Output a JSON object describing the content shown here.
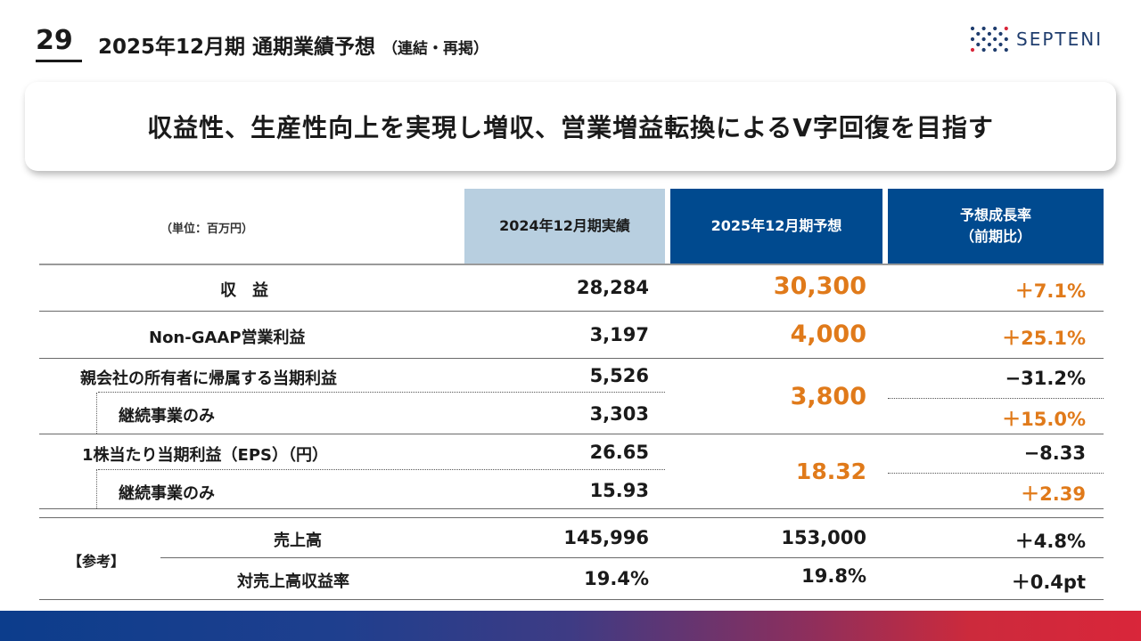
{
  "header": {
    "page_number": "29",
    "title": "2025年12月期 通期業績予想",
    "title_sub": "（連結・再掲）",
    "logo_text": "SEPTENI"
  },
  "headline": "収益性、生産性向上を実現し増収、営業増益転換によるV字回復を目指す",
  "table": {
    "unit": "（単位：百万円）",
    "col_actual": "2024年12月期実績",
    "col_forecast": "2025年12月期予想",
    "col_growth_line1": "予想成長率",
    "col_growth_line2": "（前期比）",
    "rows": {
      "revenue": {
        "label": "収　益",
        "actual": "28,284",
        "forecast": "30,300",
        "growth": "＋7.1%"
      },
      "op_profit": {
        "label": "Non-GAAP営業利益",
        "actual": "3,197",
        "forecast": "4,000",
        "growth": "＋25.1%"
      },
      "net_income": {
        "label": "親会社の所有者に帰属する当期利益",
        "actual": "5,526",
        "growth": "−31.2%"
      },
      "net_income_cont": {
        "label": "継続事業のみ",
        "actual": "3,303",
        "growth": "＋15.0%"
      },
      "net_income_forecast": "3,800",
      "eps": {
        "label": "1株当たり当期利益（EPS）（円）",
        "actual": "26.65",
        "growth": "−8.33"
      },
      "eps_cont": {
        "label": "継続事業のみ",
        "actual": "15.93",
        "growth": "＋2.39"
      },
      "eps_forecast": "18.32"
    },
    "reference": {
      "label": "【参考】",
      "sales": {
        "label": "売上高",
        "actual": "145,996",
        "forecast": "153,000",
        "growth": "＋4.8%"
      },
      "margin": {
        "label": "対売上高収益率",
        "actual": "19.4%",
        "forecast": "19.8%",
        "growth": "＋0.4pt"
      }
    }
  },
  "colors": {
    "accent_navy": "#004a8f",
    "header_light_blue": "#b8cfe0",
    "forecast_orange": "#e07a1a",
    "logo_navy": "#1f3d6e",
    "logo_red": "#d9263a"
  }
}
